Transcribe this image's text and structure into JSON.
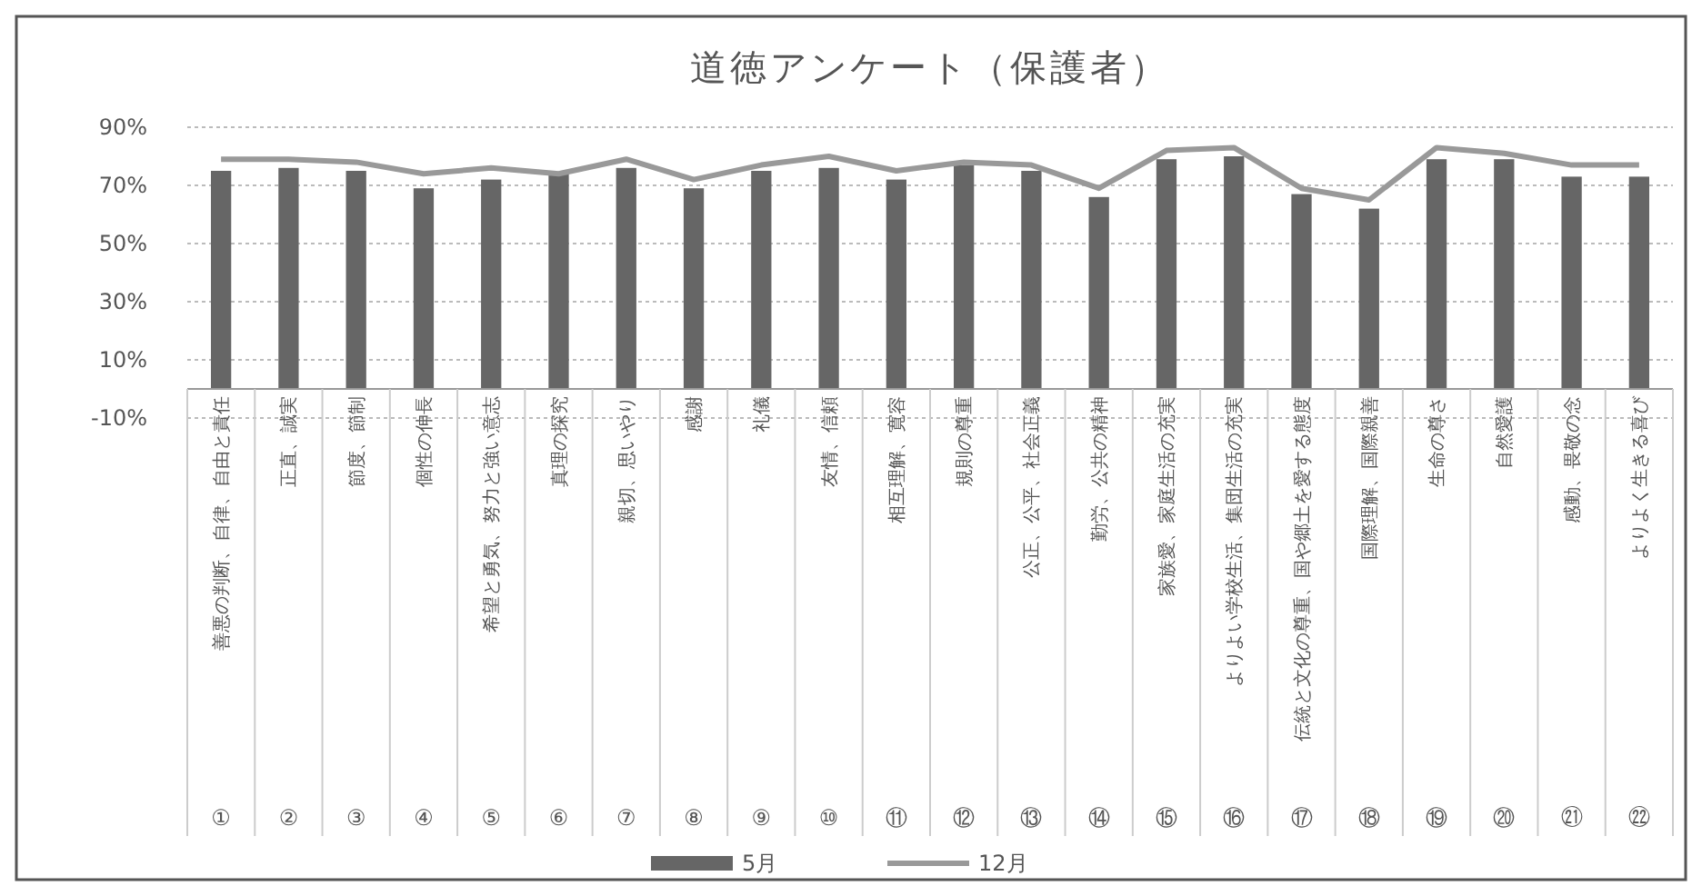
{
  "chart_data": {
    "type": "bar",
    "title": "道徳アンケート（保護者）",
    "categories": [
      "善悪の判断、自律、自由と責任①",
      "正直、誠実②",
      "節度、節制③",
      "個性の伸長④",
      "希望と勇気、努力と強い意志⑤",
      "真理の探究⑥",
      "親切、思いやり⑦",
      "感謝⑧",
      "礼儀⑨",
      "友情、信頼⑩",
      "相互理解、寛容⑪",
      "規則の尊重⑫",
      "公正、公平、社会正義⑬",
      "勤労、公共の精神⑭",
      "家族愛、家庭生活の充実⑮",
      "よりよい学校生活、集団生活の充実⑯",
      "伝統と文化の尊重、国や郷土を愛する態度⑰",
      "国際理解、国際親善⑱",
      "生命の尊さ⑲",
      "自然愛護⑳",
      "感動、畏敬の念㉑",
      "よりよく生きる喜び㉒"
    ],
    "series": [
      {
        "name": "5月",
        "color": "#666666",
        "values": [
          75,
          76,
          75,
          69,
          72,
          74,
          76,
          69,
          75,
          76,
          72,
          77,
          75,
          66,
          79,
          80,
          67,
          62,
          79,
          79,
          73,
          73
        ]
      },
      {
        "name": "12月",
        "type": "line",
        "color": "#999999",
        "values": [
          79,
          79,
          78,
          74,
          76,
          74,
          79,
          72,
          77,
          80,
          75,
          78,
          77,
          69,
          82,
          83,
          69,
          65,
          83,
          81,
          77,
          77
        ]
      }
    ],
    "ylim": [
      -10,
      90
    ],
    "yticks": [
      {
        "value": -10,
        "label": "-10%"
      },
      {
        "value": 10,
        "label": "10%"
      },
      {
        "value": 30,
        "label": "30%"
      },
      {
        "value": 50,
        "label": "50%"
      },
      {
        "value": 70,
        "label": "70%"
      },
      {
        "value": 90,
        "label": "90%"
      }
    ],
    "grid": "y",
    "legend": "bottom",
    "marker": "none",
    "line_style": "solid"
  }
}
